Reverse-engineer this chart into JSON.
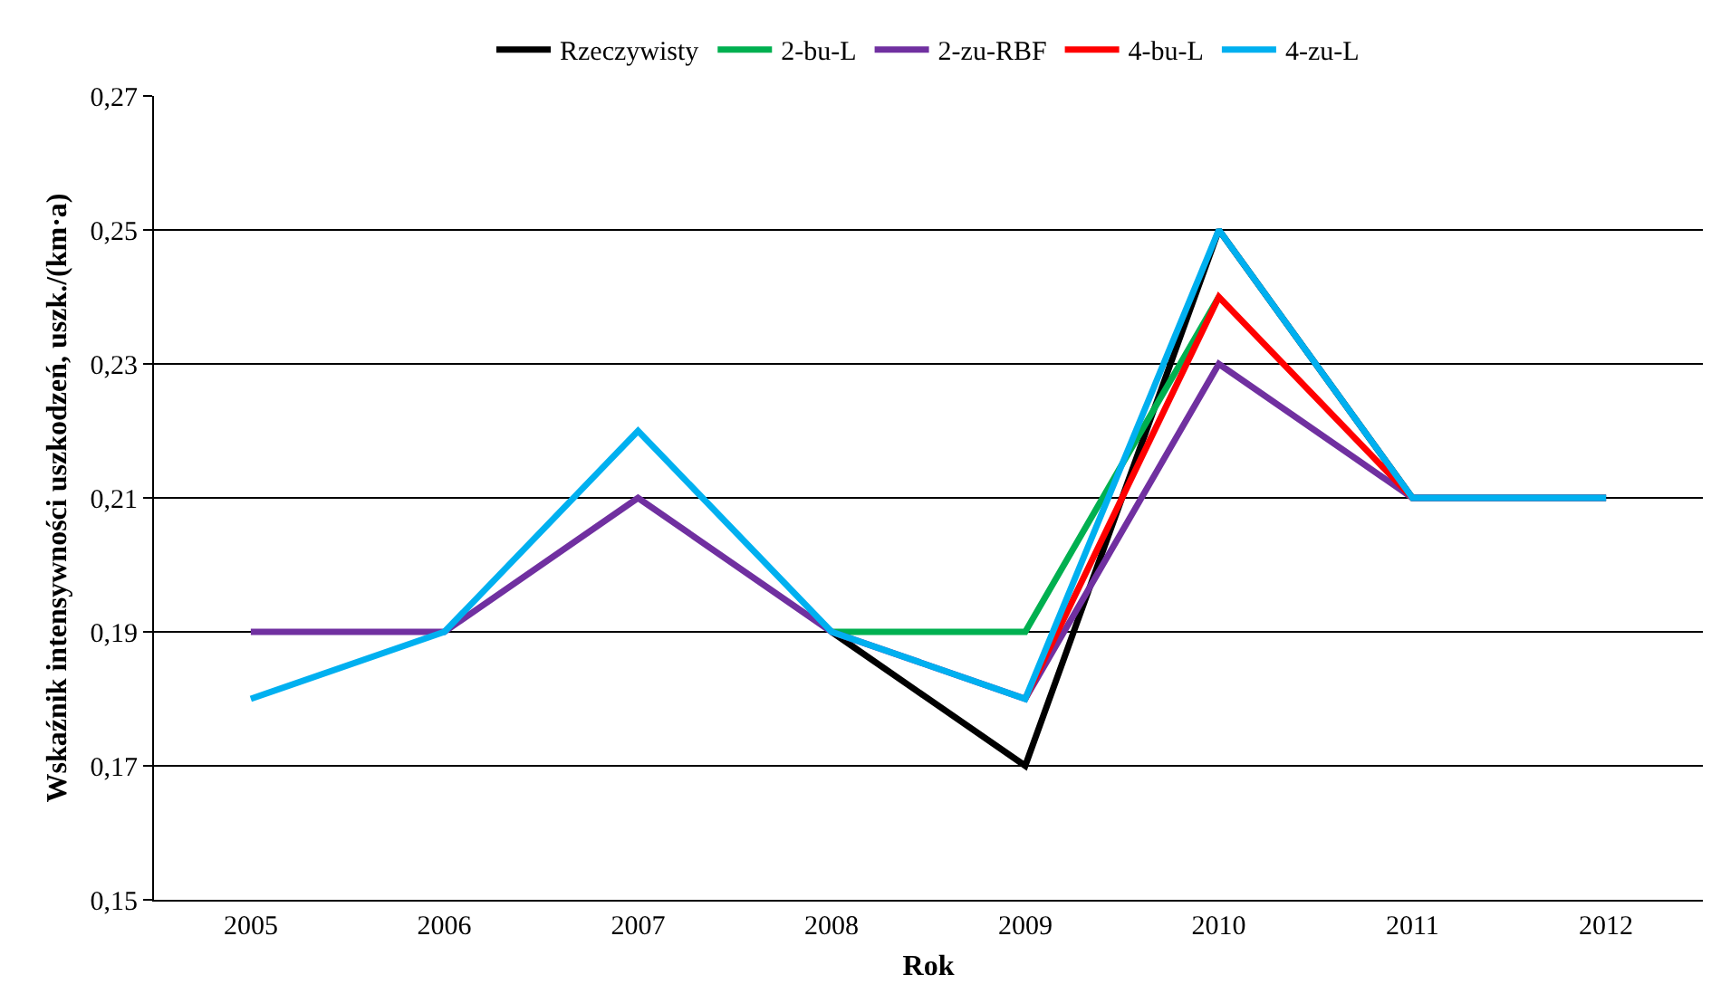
{
  "chart_data": {
    "type": "line",
    "xlabel": "Rok",
    "ylabel": "Wskaźnik intensywności uszkodzeń, uszk./(km·a)",
    "categories": [
      "2005",
      "2006",
      "2007",
      "2008",
      "2009",
      "2010",
      "2011",
      "2012"
    ],
    "series": [
      {
        "name": "Rzeczywisty",
        "color": "#000000",
        "values": [
          null,
          null,
          null,
          0.19,
          0.17,
          0.25,
          0.21,
          0.21
        ]
      },
      {
        "name": "2-bu-L",
        "color": "#00b050",
        "values": [
          null,
          null,
          null,
          0.19,
          0.19,
          0.24,
          null,
          null
        ]
      },
      {
        "name": "2-zu-RBF",
        "color": "#7030a0",
        "values": [
          0.19,
          0.19,
          0.21,
          0.19,
          0.18,
          0.23,
          0.21,
          0.21
        ]
      },
      {
        "name": "4-bu-L",
        "color": "#ff0000",
        "values": [
          null,
          null,
          null,
          null,
          0.18,
          0.24,
          0.21,
          null
        ]
      },
      {
        "name": "4-zu-L",
        "color": "#00b0f0",
        "values": [
          0.18,
          0.19,
          0.22,
          0.19,
          0.18,
          0.25,
          0.21,
          0.21
        ]
      }
    ],
    "ylim": [
      0.15,
      0.27
    ],
    "yticks": [
      {
        "value": 0.15,
        "label": "0,15"
      },
      {
        "value": 0.17,
        "label": "0,17"
      },
      {
        "value": 0.19,
        "label": "0,19"
      },
      {
        "value": 0.21,
        "label": "0,21"
      },
      {
        "value": 0.23,
        "label": "0,23"
      },
      {
        "value": 0.25,
        "label": "0,25"
      },
      {
        "value": 0.27,
        "label": "0,27"
      }
    ],
    "grid": "y",
    "legend": "top",
    "marker": "none",
    "line_style": "solid"
  }
}
